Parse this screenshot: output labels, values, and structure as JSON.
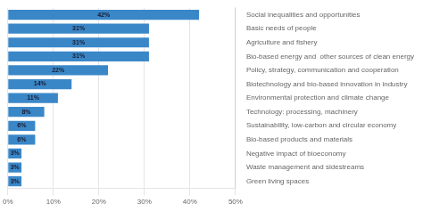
{
  "chart_data": {
    "type": "bar",
    "orientation": "horizontal",
    "categories": [
      "Social inequalities and opportunities",
      "Basic needs of people",
      "Agriculture and fishery",
      "Bio-based energy and  other sources of clean energy",
      "Policy, strategy, communication and cooperation",
      "Biotechnology and bio-based innovation in industry",
      "Environmental protection and climate change",
      "Technology: processing, machinery",
      "Sustainability, low-carbon and circular economy",
      "Bio-based products and materials",
      "Negative impact of bioeconomy",
      "Waste management and sidestreams",
      "Green living spaces"
    ],
    "values": [
      42,
      31,
      31,
      31,
      22,
      14,
      11,
      8,
      6,
      6,
      3,
      3,
      3
    ],
    "value_labels": [
      "42%",
      "31%",
      "31%",
      "31%",
      "22%",
      "14%",
      "11%",
      "8%",
      "6%",
      "6%",
      "3%",
      "3%",
      "3%"
    ],
    "data_labels": true,
    "color": "#3a87c8",
    "xlim": [
      0,
      50
    ],
    "xticks": [
      {
        "value": 0,
        "label": "0%"
      },
      {
        "value": 10,
        "label": "10%"
      },
      {
        "value": 20,
        "label": "20%"
      },
      {
        "value": 30,
        "label": "30%"
      },
      {
        "value": 40,
        "label": "40%"
      },
      {
        "value": 50,
        "label": "50%"
      }
    ],
    "grid": true
  }
}
